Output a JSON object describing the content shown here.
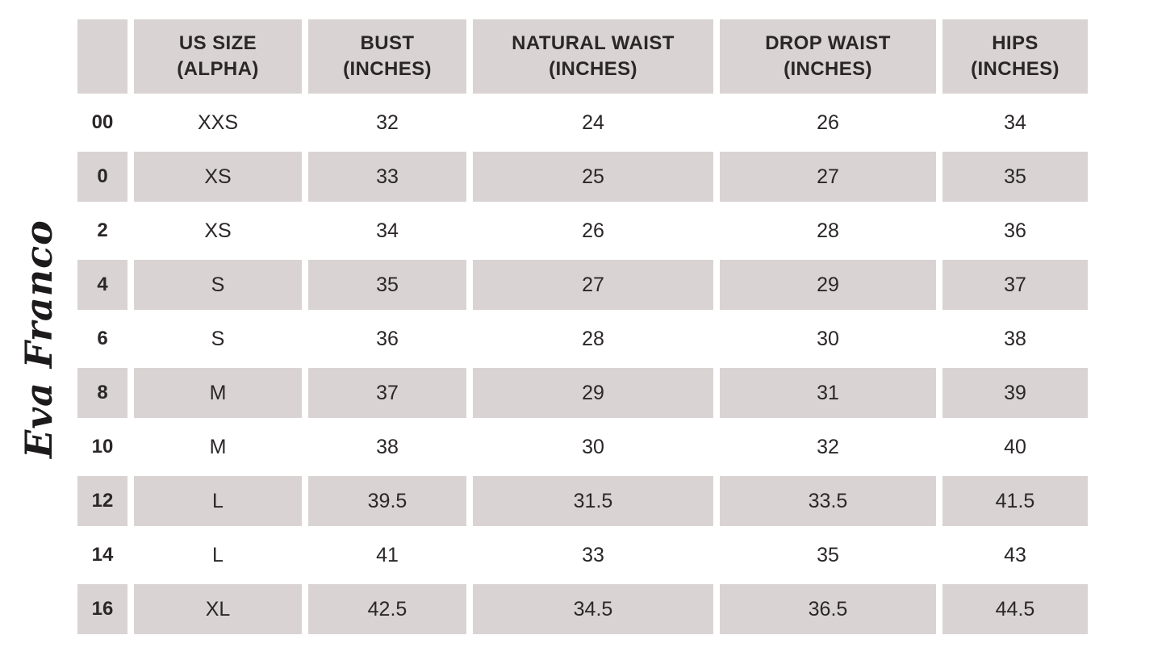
{
  "brand": {
    "logo_text": "Eva Franco"
  },
  "colors": {
    "stripe_bg": "#d9d4d3",
    "row_bg": "#ffffff",
    "text": "#2b2728",
    "page_bg": "#ffffff"
  },
  "chart_data": {
    "type": "table",
    "columns": [
      {
        "label_line1": "",
        "label_line2": ""
      },
      {
        "label_line1": "US SIZE",
        "label_line2": "(ALPHA)"
      },
      {
        "label_line1": "BUST",
        "label_line2": "(INCHES)"
      },
      {
        "label_line1": "NATURAL WAIST",
        "label_line2": "(INCHES)"
      },
      {
        "label_line1": "DROP WAIST",
        "label_line2": "(INCHES)"
      },
      {
        "label_line1": "HIPS",
        "label_line2": "(INCHES)"
      }
    ],
    "column_keys": [
      "us-size",
      "us-size-alpha",
      "bust",
      "natural-waist",
      "drop-waist",
      "hips"
    ],
    "rows": [
      [
        "00",
        "XXS",
        "32",
        "24",
        "26",
        "34"
      ],
      [
        "0",
        "XS",
        "33",
        "25",
        "27",
        "35"
      ],
      [
        "2",
        "XS",
        "34",
        "26",
        "28",
        "36"
      ],
      [
        "4",
        "S",
        "35",
        "27",
        "29",
        "37"
      ],
      [
        "6",
        "S",
        "36",
        "28",
        "30",
        "38"
      ],
      [
        "8",
        "M",
        "37",
        "29",
        "31",
        "39"
      ],
      [
        "10",
        "M",
        "38",
        "30",
        "32",
        "40"
      ],
      [
        "12",
        "L",
        "39.5",
        "31.5",
        "33.5",
        "41.5"
      ],
      [
        "14",
        "L",
        "41",
        "33",
        "35",
        "43"
      ],
      [
        "16",
        "XL",
        "42.5",
        "34.5",
        "36.5",
        "44.5"
      ]
    ]
  }
}
